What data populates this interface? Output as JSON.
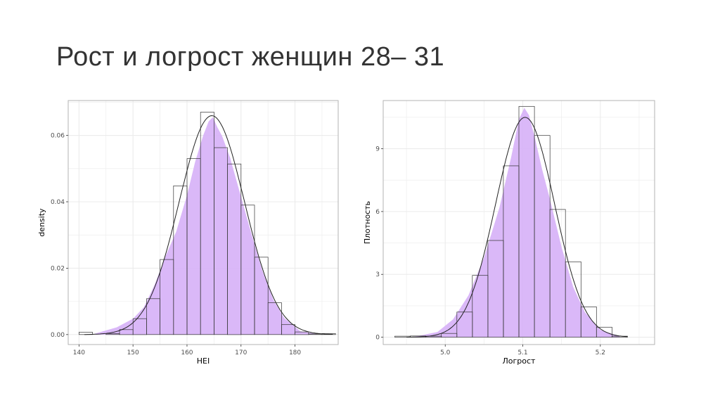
{
  "slide": {
    "title": "Рост и логрост женщин 28– 31"
  },
  "colors": {
    "density_fill": "#d8b4f8",
    "histogram_stroke": "#333333",
    "curve_stroke": "#222222",
    "grid": "#ebebeb",
    "panel_border": "#b3b3b3"
  },
  "chart_data": [
    {
      "type": "bar",
      "xlabel": "HEI",
      "ylabel": "density",
      "xlim": [
        138,
        188
      ],
      "ylim": [
        -0.003,
        0.0705
      ],
      "x_ticks": [
        140,
        150,
        160,
        170,
        180
      ],
      "y_ticks": [
        0.0,
        0.02,
        0.04,
        0.06
      ],
      "y_tick_labels": [
        "0.00",
        "0.02",
        "0.04",
        "0.06"
      ],
      "grid": true,
      "histogram": {
        "bin_starts": [
          140,
          142.5,
          145,
          147.5,
          150,
          152.5,
          155,
          157.5,
          160,
          162.5,
          165,
          167.5,
          170,
          172.5,
          175,
          177.5,
          180,
          182.5,
          185
        ],
        "bin_width": 2.5,
        "values": [
          0.0007,
          0.0,
          0.0003,
          0.0015,
          0.0048,
          0.0108,
          0.0226,
          0.0448,
          0.053,
          0.067,
          0.0563,
          0.0514,
          0.039,
          0.0233,
          0.0096,
          0.003,
          0.0008,
          0.0002,
          0.0003
        ]
      },
      "normal_curve": {
        "mean": 164.6,
        "sd": 6.05
      },
      "density_estimate": {
        "x": [
          143,
          147,
          150,
          152,
          154,
          156,
          158,
          160,
          161.5,
          163,
          164,
          164.8,
          165.6,
          166.5,
          168,
          170,
          172,
          174,
          176,
          178,
          181,
          184
        ],
        "y": [
          0.0003,
          0.0022,
          0.0048,
          0.0082,
          0.015,
          0.0235,
          0.031,
          0.042,
          0.052,
          0.06,
          0.0642,
          0.0655,
          0.0625,
          0.0598,
          0.0532,
          0.0415,
          0.03,
          0.019,
          0.0105,
          0.005,
          0.001,
          0.0002
        ]
      }
    },
    {
      "type": "bar",
      "xlabel": "Логрост",
      "ylabel": "Плотность",
      "xlim": [
        4.92,
        5.27
      ],
      "ylim": [
        -0.35,
        11.3
      ],
      "x_ticks": [
        5.0,
        5.1,
        5.2
      ],
      "x_tick_labels": [
        "5.0",
        "5.1",
        "5.2"
      ],
      "y_ticks": [
        0,
        3,
        6,
        9
      ],
      "y_tick_labels": [
        "0",
        "3",
        "6",
        "9"
      ],
      "grid": true,
      "histogram": {
        "bin_starts": [
          4.935,
          4.955,
          4.975,
          4.995,
          5.015,
          5.035,
          5.055,
          5.075,
          5.095,
          5.115,
          5.135,
          5.155,
          5.175,
          5.195,
          5.215
        ],
        "bin_width": 0.02,
        "values": [
          0.05,
          0.06,
          0.05,
          0.18,
          1.2,
          2.95,
          4.62,
          8.18,
          11.02,
          9.63,
          6.1,
          3.6,
          1.45,
          0.48,
          0.05
        ]
      },
      "normal_curve": {
        "mean": 5.103,
        "sd": 0.038
      },
      "density_estimate": {
        "x": [
          4.96,
          4.99,
          5.01,
          5.03,
          5.05,
          5.07,
          5.085,
          5.095,
          5.102,
          5.108,
          5.115,
          5.125,
          5.135,
          5.15,
          5.165,
          5.18,
          5.2,
          5.225
        ],
        "y": [
          0.02,
          0.25,
          0.85,
          2.0,
          3.8,
          6.2,
          8.6,
          10.4,
          10.95,
          10.6,
          9.6,
          8.0,
          6.6,
          4.3,
          2.4,
          1.2,
          0.35,
          0.05
        ]
      }
    }
  ]
}
